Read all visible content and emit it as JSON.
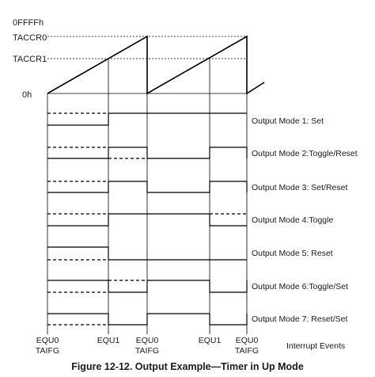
{
  "timer_axis": {
    "levels": [
      "0FFFFh",
      "TACCR0",
      "TACCR1",
      "0h"
    ]
  },
  "output_modes": [
    {
      "label": "Output Mode 1: Set"
    },
    {
      "label": "Output Mode 2:Toggle/Reset"
    },
    {
      "label": "Output Mode 3: Set/Reset"
    },
    {
      "label": "Output Mode 4:Toggle"
    },
    {
      "label": "Output Mode 5: Reset"
    },
    {
      "label": "Output Mode 6:Toggle/Set"
    },
    {
      "label": "Output Mode 7: Reset/Set"
    }
  ],
  "events": [
    {
      "top": "EQU0",
      "bottom": "TAIFG"
    },
    {
      "top": "EQU1",
      "bottom": ""
    },
    {
      "top": "EQU0",
      "bottom": "TAIFG"
    },
    {
      "top": "EQU1",
      "bottom": ""
    },
    {
      "top": "EQU0",
      "bottom": "TAIFG"
    }
  ],
  "events_caption": "Interrupt Events",
  "caption": "Figure 12-12. Output Example—Timer in Up Mode"
}
